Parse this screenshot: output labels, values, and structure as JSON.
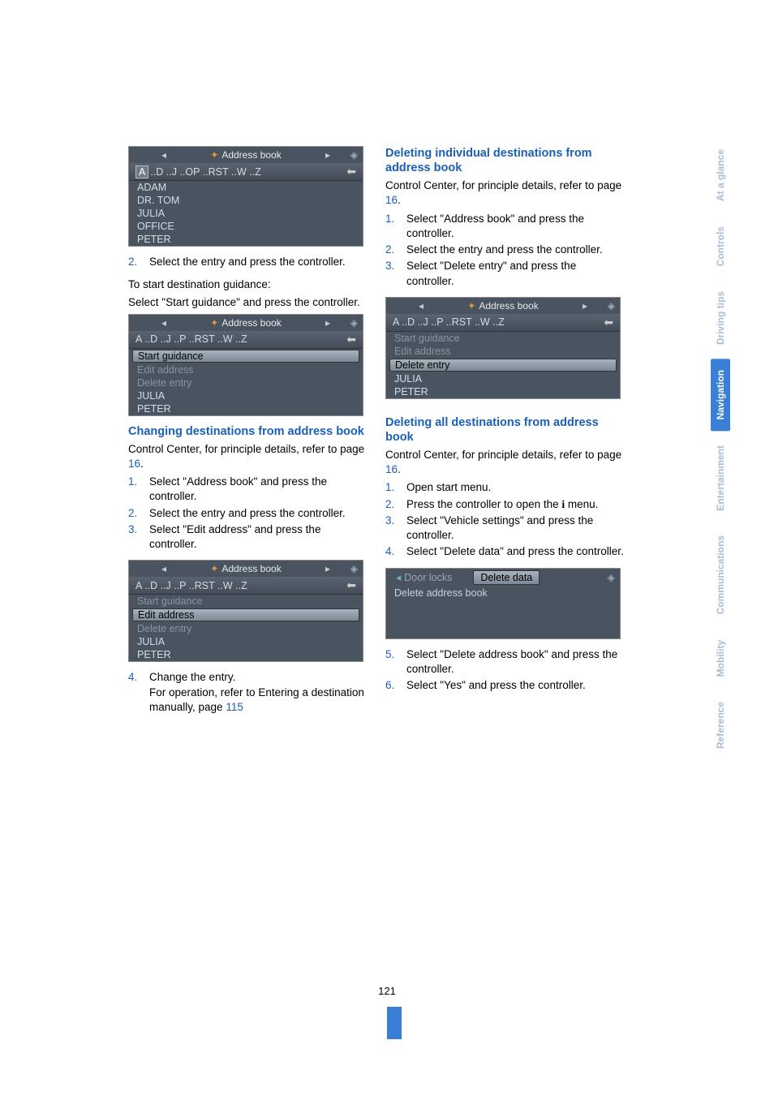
{
  "page_number": "121",
  "sidebar": {
    "tabs": [
      {
        "label": "At a glance",
        "active": false
      },
      {
        "label": "Controls",
        "active": false
      },
      {
        "label": "Driving tips",
        "active": false
      },
      {
        "label": "Navigation",
        "active": true
      },
      {
        "label": "Entertainment",
        "active": false
      },
      {
        "label": "Communications",
        "active": false
      },
      {
        "label": "Mobility",
        "active": false
      },
      {
        "label": "Reference",
        "active": false
      }
    ]
  },
  "left": {
    "ss1": {
      "header": "Address book",
      "letters_first": "A",
      "letters_rest": "..D ..J ..OP ..RST ..W ..Z",
      "items": [
        "ADAM",
        "DR. TOM",
        "JULIA",
        "OFFICE",
        "PETER"
      ]
    },
    "step2": {
      "num": "2.",
      "text": "Select the entry and press the controller."
    },
    "to_start": "To start destination guidance:",
    "start_guidance_text": "Select \"Start guidance\" and press the controller.",
    "ss2": {
      "header": "Address book",
      "letters": "A ..D ..J ..P ..RST ..W ..Z",
      "sel": "Start guidance",
      "faded": [
        "Edit address",
        "Delete entry"
      ],
      "items2": [
        "JULIA",
        "PETER"
      ]
    },
    "h1": "Changing destinations from address book",
    "cc_text_a": "Control Center, for principle details, refer to page ",
    "cc_link": "16",
    "cc_text_b": ".",
    "steps_change": [
      {
        "num": "1.",
        "text": "Select \"Address book\" and press the controller."
      },
      {
        "num": "2.",
        "text": "Select the entry and press the controller."
      },
      {
        "num": "3.",
        "text": "Select \"Edit address\" and press the controller."
      }
    ],
    "ss3": {
      "header": "Address book",
      "letters": "A ..D ..J ..P ..RST ..W ..Z",
      "faded1": "Start guidance",
      "sel": "Edit address",
      "faded2": "Delete entry",
      "items2": [
        "JULIA",
        "PETER"
      ]
    },
    "step4": {
      "num": "4.",
      "text_a": "Change the entry.",
      "text_b": "For operation, refer to Entering a destination manually, page ",
      "link": "115"
    }
  },
  "right": {
    "h1": "Deleting individual destinations from address book",
    "cc_text_a": "Control Center, for principle details, refer to page ",
    "cc_link": "16",
    "cc_text_b": ".",
    "steps_del": [
      {
        "num": "1.",
        "text": "Select \"Address book\" and press the controller."
      },
      {
        "num": "2.",
        "text": "Select the entry and press the controller."
      },
      {
        "num": "3.",
        "text": "Select \"Delete entry\" and press the controller."
      }
    ],
    "ss4": {
      "header": "Address book",
      "letters": "A ..D ..J ..P ..RST ..W ..Z",
      "faded": [
        "Start guidance",
        "Edit address"
      ],
      "sel": "Delete entry",
      "items2": [
        "JULIA",
        "PETER"
      ]
    },
    "h2": "Deleting all destinations from address book",
    "steps_all": [
      {
        "num": "1.",
        "text": "Open start menu."
      },
      {
        "num": "2.",
        "text_a": "Press the controller to open the ",
        "icon": "i",
        "text_b": " menu."
      },
      {
        "num": "3.",
        "text": "Select \"Vehicle settings\" and press the controller."
      },
      {
        "num": "4.",
        "text": "Select \"Delete data\" and press the controller."
      }
    ],
    "ss5": {
      "tab_left": "Door locks",
      "tab_sel": "Delete data",
      "item": "Delete address book"
    },
    "steps_after": [
      {
        "num": "5.",
        "text": "Select \"Delete address book\" and press the controller."
      },
      {
        "num": "6.",
        "text": "Select \"Yes\" and press the controller."
      }
    ]
  }
}
